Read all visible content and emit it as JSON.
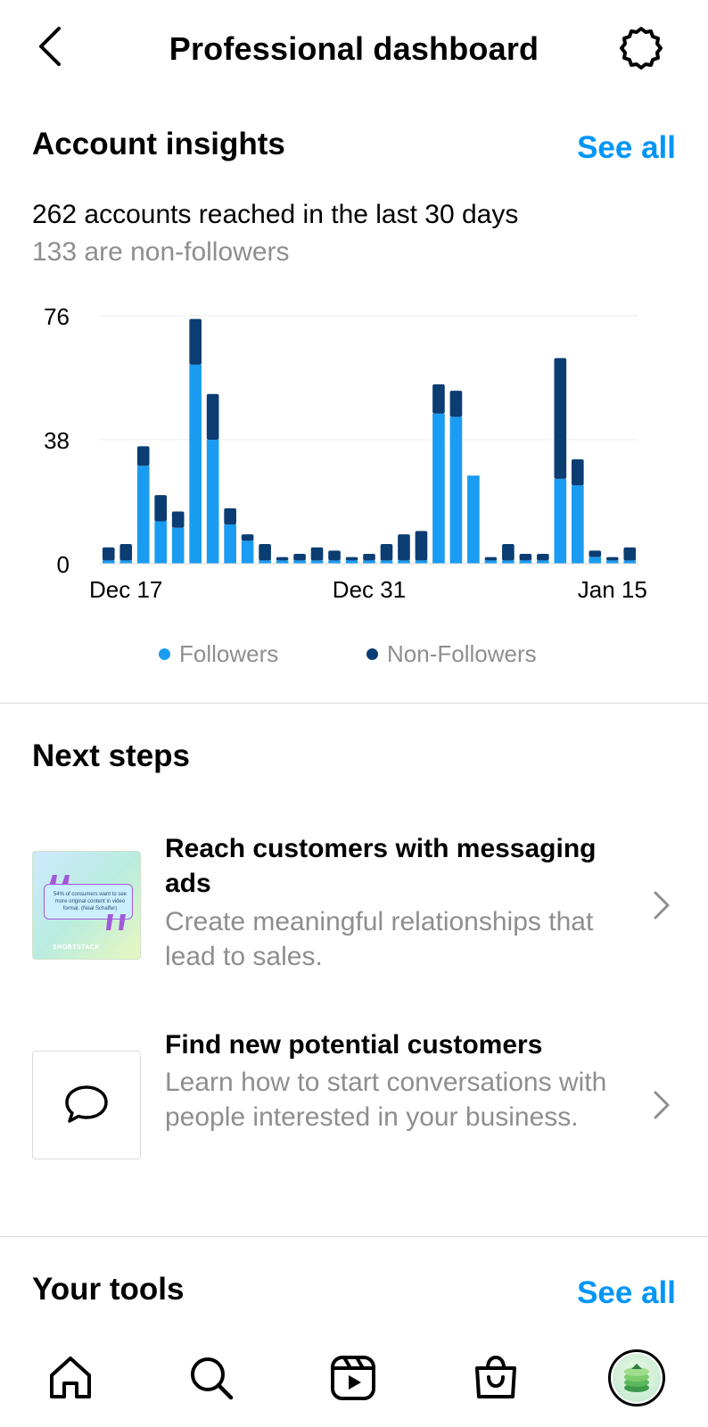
{
  "header": {
    "title": "Professional dashboard"
  },
  "insights": {
    "title": "Account insights",
    "see_all": "See all",
    "reach_text": "262 accounts reached in the last 30 days",
    "non_followers_text": "133 are non-followers"
  },
  "chart_data": {
    "type": "bar",
    "stacked": true,
    "ylim": [
      0,
      76
    ],
    "y_ticks": [
      "76",
      "38",
      "0"
    ],
    "y_tick_values": [
      76,
      38,
      0
    ],
    "x_tick_labels": [
      "Dec 17",
      "Dec 31",
      "Jan 15"
    ],
    "x_tick_indices": [
      1,
      15,
      29
    ],
    "grid": true,
    "legend": "bottom",
    "series": [
      {
        "name": "Followers",
        "color": "#1a9cf2",
        "values": [
          1,
          1,
          30,
          13,
          11,
          61,
          38,
          12,
          7,
          1,
          1,
          1,
          1,
          1,
          1,
          1,
          1,
          1,
          1,
          46,
          45,
          27,
          1,
          1,
          1,
          1,
          26,
          24,
          2,
          1,
          1
        ]
      },
      {
        "name": "Non-Followers",
        "color": "#0b3d73",
        "values": [
          4,
          5,
          6,
          8,
          5,
          14,
          14,
          5,
          2,
          5,
          1,
          2,
          4,
          3,
          1,
          2,
          5,
          8,
          9,
          9,
          8,
          0,
          1,
          5,
          2,
          2,
          37,
          8,
          2,
          1,
          4
        ]
      }
    ]
  },
  "next_steps": {
    "title": "Next steps",
    "items": [
      {
        "title": "Reach customers with messaging ads",
        "description": "Create meaningful relationships that lead to sales.",
        "thumb_text": "54% of consumers want to see more original content in video format. (Neal Schaffer)",
        "thumb_brand": "SHORTSTACK"
      },
      {
        "title": "Find new potential customers",
        "description": "Learn how to start conversations with people interested in your business."
      }
    ]
  },
  "tools": {
    "title": "Your tools",
    "see_all": "See all"
  },
  "icons": {
    "back": "chevron-left-icon",
    "settings": "gear-icon",
    "home": "home-icon",
    "search": "search-icon",
    "reels": "reels-icon",
    "shop": "shopping-bag-icon",
    "profile": "profile-avatar"
  },
  "colors": {
    "accent": "#0095f6",
    "followers": "#1a9cf2",
    "non_followers": "#0b3d73",
    "secondary_text": "#8e8e8e"
  }
}
